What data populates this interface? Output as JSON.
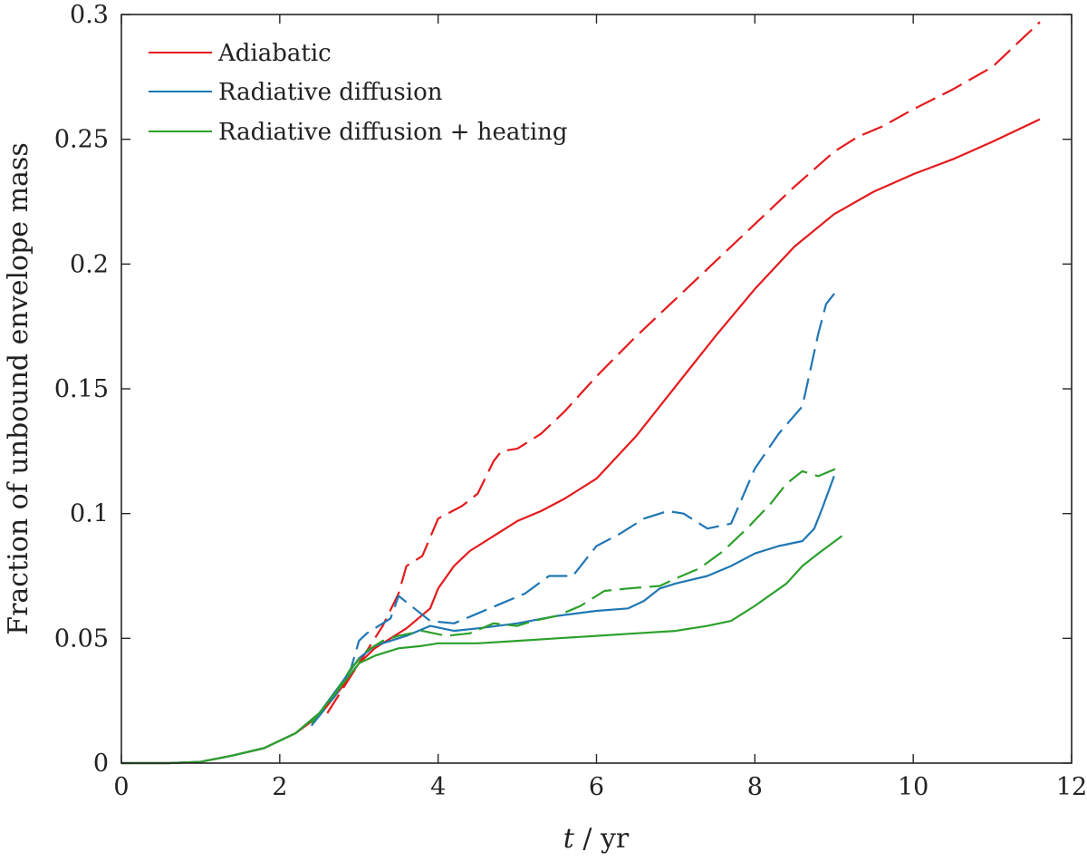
{
  "chart_data": {
    "type": "line",
    "title": "",
    "xlabel_var": "t",
    "xlabel_sep": " / ",
    "xlabel_unit": "yr",
    "ylabel": "Fraction of unbound envelope mass",
    "xlim": [
      0,
      12
    ],
    "ylim": [
      0,
      0.3
    ],
    "xticks": [
      0,
      2,
      4,
      6,
      8,
      10,
      12
    ],
    "xtick_labels": [
      "0",
      "2",
      "4",
      "6",
      "8",
      "10",
      "12"
    ],
    "yticks": [
      0,
      0.05,
      0.1,
      0.15,
      0.2,
      0.25,
      0.3
    ],
    "ytick_labels": [
      "0",
      "0.05",
      "0.1",
      "0.15",
      "0.2",
      "0.25",
      "0.3"
    ],
    "grid": false,
    "legend_position": "top-left",
    "legend": [
      {
        "label": "Adiabatic",
        "color": "#e41a1c"
      },
      {
        "label": "Radiative diffusion",
        "color": "#1f77b4"
      },
      {
        "label": "Radiative diffusion + heating",
        "color": "#2ca02c"
      }
    ],
    "series": [
      {
        "name": "Adiabatic (solid)",
        "color": "#e41a1c",
        "style": "solid",
        "points": [
          [
            0,
            0
          ],
          [
            0.6,
            0
          ],
          [
            1.0,
            0.0005
          ],
          [
            1.4,
            0.003
          ],
          [
            1.8,
            0.006
          ],
          [
            2.2,
            0.012
          ],
          [
            2.5,
            0.019
          ],
          [
            2.8,
            0.031
          ],
          [
            3.0,
            0.04
          ],
          [
            3.2,
            0.046
          ],
          [
            3.4,
            0.05
          ],
          [
            3.6,
            0.054
          ],
          [
            3.9,
            0.062
          ],
          [
            4.0,
            0.07
          ],
          [
            4.2,
            0.079
          ],
          [
            4.4,
            0.085
          ],
          [
            4.7,
            0.091
          ],
          [
            5.0,
            0.097
          ],
          [
            5.3,
            0.101
          ],
          [
            5.6,
            0.106
          ],
          [
            6.0,
            0.114
          ],
          [
            6.5,
            0.131
          ],
          [
            7.0,
            0.151
          ],
          [
            7.5,
            0.171
          ],
          [
            8.0,
            0.19
          ],
          [
            8.5,
            0.207
          ],
          [
            9.0,
            0.22
          ],
          [
            9.5,
            0.229
          ],
          [
            10.0,
            0.236
          ],
          [
            10.5,
            0.242
          ],
          [
            11.0,
            0.249
          ],
          [
            11.6,
            0.258
          ]
        ]
      },
      {
        "name": "Adiabatic (dashed)",
        "color": "#e41a1c",
        "style": "dashed",
        "points": [
          [
            2.6,
            0.02
          ],
          [
            2.9,
            0.035
          ],
          [
            3.1,
            0.045
          ],
          [
            3.3,
            0.055
          ],
          [
            3.5,
            0.068
          ],
          [
            3.6,
            0.079
          ],
          [
            3.8,
            0.083
          ],
          [
            4.0,
            0.098
          ],
          [
            4.3,
            0.103
          ],
          [
            4.5,
            0.108
          ],
          [
            4.7,
            0.121
          ],
          [
            4.8,
            0.125
          ],
          [
            5.0,
            0.126
          ],
          [
            5.3,
            0.132
          ],
          [
            5.6,
            0.141
          ],
          [
            6.0,
            0.155
          ],
          [
            6.5,
            0.171
          ],
          [
            7.0,
            0.186
          ],
          [
            7.5,
            0.201
          ],
          [
            8.0,
            0.216
          ],
          [
            8.5,
            0.231
          ],
          [
            9.0,
            0.245
          ],
          [
            9.3,
            0.251
          ],
          [
            9.6,
            0.255
          ],
          [
            10.0,
            0.262
          ],
          [
            10.5,
            0.27
          ],
          [
            11.0,
            0.279
          ],
          [
            11.6,
            0.297
          ]
        ]
      },
      {
        "name": "Radiative diffusion (solid)",
        "color": "#1f77b4",
        "style": "solid",
        "points": [
          [
            0,
            0
          ],
          [
            0.6,
            0
          ],
          [
            1.0,
            0.0005
          ],
          [
            1.4,
            0.003
          ],
          [
            1.8,
            0.006
          ],
          [
            2.2,
            0.012
          ],
          [
            2.5,
            0.02
          ],
          [
            2.8,
            0.033
          ],
          [
            3.0,
            0.042
          ],
          [
            3.2,
            0.047
          ],
          [
            3.4,
            0.049
          ],
          [
            3.6,
            0.051
          ],
          [
            3.9,
            0.055
          ],
          [
            4.2,
            0.053
          ],
          [
            4.5,
            0.054
          ],
          [
            5.0,
            0.056
          ],
          [
            5.5,
            0.059
          ],
          [
            6.0,
            0.061
          ],
          [
            6.4,
            0.062
          ],
          [
            6.6,
            0.065
          ],
          [
            6.8,
            0.07
          ],
          [
            7.0,
            0.072
          ],
          [
            7.4,
            0.075
          ],
          [
            7.7,
            0.079
          ],
          [
            8.0,
            0.084
          ],
          [
            8.3,
            0.087
          ],
          [
            8.6,
            0.089
          ],
          [
            8.75,
            0.094
          ],
          [
            8.85,
            0.102
          ],
          [
            9.0,
            0.115
          ]
        ]
      },
      {
        "name": "Radiative diffusion (dashed)",
        "color": "#1f77b4",
        "style": "dashed",
        "points": [
          [
            2.4,
            0.015
          ],
          [
            2.7,
            0.027
          ],
          [
            2.9,
            0.038
          ],
          [
            3.0,
            0.049
          ],
          [
            3.1,
            0.052
          ],
          [
            3.2,
            0.054
          ],
          [
            3.4,
            0.058
          ],
          [
            3.5,
            0.067
          ],
          [
            3.7,
            0.062
          ],
          [
            3.9,
            0.057
          ],
          [
            4.2,
            0.056
          ],
          [
            4.5,
            0.06
          ],
          [
            4.8,
            0.064
          ],
          [
            5.1,
            0.068
          ],
          [
            5.4,
            0.075
          ],
          [
            5.7,
            0.075
          ],
          [
            6.0,
            0.087
          ],
          [
            6.3,
            0.092
          ],
          [
            6.6,
            0.098
          ],
          [
            6.9,
            0.101
          ],
          [
            7.1,
            0.1
          ],
          [
            7.4,
            0.094
          ],
          [
            7.7,
            0.096
          ],
          [
            8.0,
            0.118
          ],
          [
            8.3,
            0.132
          ],
          [
            8.6,
            0.143
          ],
          [
            8.8,
            0.172
          ],
          [
            8.9,
            0.184
          ],
          [
            9.05,
            0.19
          ]
        ]
      },
      {
        "name": "Radiative diffusion + heating (solid)",
        "color": "#2ca02c",
        "style": "solid",
        "points": [
          [
            0,
            0
          ],
          [
            0.6,
            0
          ],
          [
            1.0,
            0.0005
          ],
          [
            1.4,
            0.003
          ],
          [
            1.8,
            0.006
          ],
          [
            2.2,
            0.012
          ],
          [
            2.5,
            0.02
          ],
          [
            2.8,
            0.032
          ],
          [
            3.0,
            0.04
          ],
          [
            3.2,
            0.043
          ],
          [
            3.5,
            0.046
          ],
          [
            3.8,
            0.047
          ],
          [
            4.0,
            0.048
          ],
          [
            4.5,
            0.048
          ],
          [
            5.0,
            0.049
          ],
          [
            5.5,
            0.05
          ],
          [
            6.0,
            0.051
          ],
          [
            6.5,
            0.052
          ],
          [
            7.0,
            0.053
          ],
          [
            7.4,
            0.055
          ],
          [
            7.7,
            0.057
          ],
          [
            8.0,
            0.063
          ],
          [
            8.4,
            0.072
          ],
          [
            8.6,
            0.079
          ],
          [
            8.8,
            0.084
          ],
          [
            9.1,
            0.091
          ]
        ]
      },
      {
        "name": "Radiative diffusion + heating (dashed)",
        "color": "#2ca02c",
        "style": "dashed",
        "points": [
          [
            2.4,
            0.016
          ],
          [
            2.7,
            0.028
          ],
          [
            2.9,
            0.038
          ],
          [
            3.1,
            0.045
          ],
          [
            3.3,
            0.049
          ],
          [
            3.5,
            0.051
          ],
          [
            3.8,
            0.053
          ],
          [
            4.1,
            0.051
          ],
          [
            4.4,
            0.052
          ],
          [
            4.7,
            0.056
          ],
          [
            5.0,
            0.055
          ],
          [
            5.2,
            0.057
          ],
          [
            5.5,
            0.059
          ],
          [
            5.8,
            0.063
          ],
          [
            6.1,
            0.069
          ],
          [
            6.4,
            0.07
          ],
          [
            6.8,
            0.071
          ],
          [
            7.0,
            0.074
          ],
          [
            7.3,
            0.078
          ],
          [
            7.6,
            0.085
          ],
          [
            7.9,
            0.094
          ],
          [
            8.2,
            0.104
          ],
          [
            8.4,
            0.112
          ],
          [
            8.6,
            0.117
          ],
          [
            8.8,
            0.115
          ],
          [
            9.1,
            0.119
          ]
        ]
      }
    ]
  }
}
